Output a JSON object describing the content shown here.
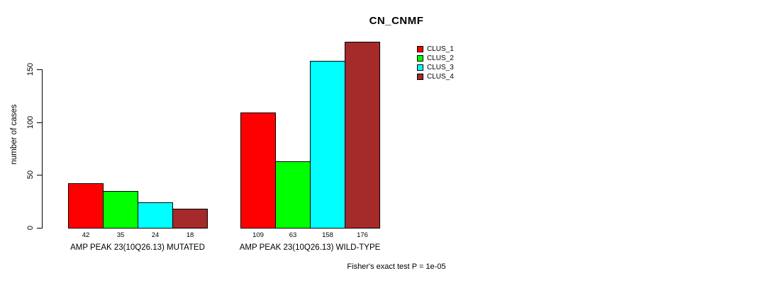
{
  "chart_data": {
    "type": "bar",
    "title": "CN_CNMF",
    "ylabel": "number of cases",
    "xlabel": "",
    "ylim": [
      0,
      150
    ],
    "yticks": [
      0,
      50,
      100,
      150
    ],
    "grid": false,
    "legend_position": "top-right-inside",
    "categories": [
      "AMP PEAK 23(10Q26.13) MUTATED",
      "AMP PEAK 23(10Q26.13) WILD-TYPE"
    ],
    "series": [
      {
        "name": "CLUS_1",
        "color": "#FF0000",
        "values": [
          42,
          109
        ]
      },
      {
        "name": "CLUS_2",
        "color": "#00FF00",
        "values": [
          35,
          63
        ]
      },
      {
        "name": "CLUS_3",
        "color": "#00FFFF",
        "values": [
          24,
          158
        ]
      },
      {
        "name": "CLUS_4",
        "color": "#A52A2A",
        "values": [
          18,
          176
        ]
      }
    ],
    "bar_value_labels": [
      [
        42,
        35,
        24,
        18
      ],
      [
        109,
        63,
        158,
        176
      ]
    ],
    "footnote": "Fisher's exact test P = 1e-05",
    "axis_color": "#000000",
    "bar_border_color": "#000000",
    "background_color": "#FFFFFF"
  }
}
